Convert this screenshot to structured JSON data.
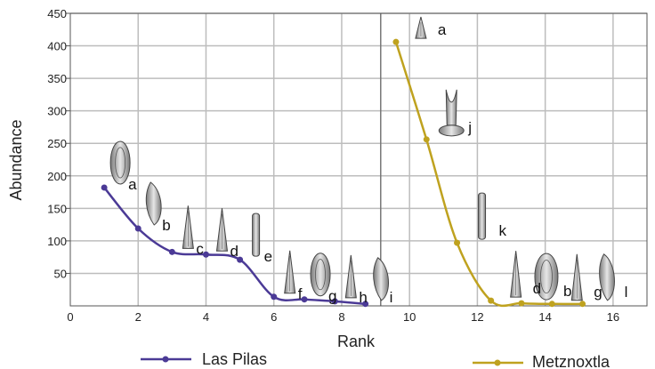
{
  "chart_data": {
    "type": "line",
    "xlabel": "Rank",
    "ylabel": "Abundance",
    "xlim": [
      0,
      17
    ],
    "ylim": [
      0,
      450
    ],
    "x_ticks": [
      "0",
      "2",
      "4",
      "6",
      "8",
      "10",
      "12",
      "14",
      "16"
    ],
    "y_ticks": [
      "50",
      "100",
      "150",
      "200",
      "250",
      "300",
      "350",
      "400",
      "450"
    ],
    "grid": true,
    "legend_position": "bottom",
    "series": [
      {
        "name": "Las Pilas",
        "color": "#4b3a96",
        "points": [
          {
            "x": 1,
            "y": 182,
            "label": "a"
          },
          {
            "x": 2,
            "y": 119,
            "label": "b"
          },
          {
            "x": 3,
            "y": 83,
            "label": "c"
          },
          {
            "x": 4,
            "y": 79,
            "label": "d"
          },
          {
            "x": 5,
            "y": 71,
            "label": "e"
          },
          {
            "x": 6,
            "y": 14,
            "label": "f"
          },
          {
            "x": 6.9,
            "y": 10,
            "label": "g"
          },
          {
            "x": 7.8,
            "y": 7,
            "label": "h"
          },
          {
            "x": 8.7,
            "y": 3,
            "label": "i"
          }
        ]
      },
      {
        "name": "Metznoxtla",
        "color": "#bfa21f",
        "points": [
          {
            "x": 9.6,
            "y": 406,
            "label": "a"
          },
          {
            "x": 10.5,
            "y": 256,
            "label": "j"
          },
          {
            "x": 11.4,
            "y": 97,
            "label": "k"
          },
          {
            "x": 12.4,
            "y": 8,
            "label": "d"
          },
          {
            "x": 13.3,
            "y": 4,
            "label": "b"
          },
          {
            "x": 14.2,
            "y": 3,
            "label": "g"
          },
          {
            "x": 15.1,
            "y": 3,
            "label": "l"
          }
        ]
      }
    ]
  },
  "legend": {
    "items": [
      {
        "label": "Las Pilas",
        "color": "#4b3a96"
      },
      {
        "label": "Metznoxtla",
        "color": "#bfa21f"
      }
    ]
  },
  "colors": {
    "grid": "#bdbdbd",
    "axis": "#555555",
    "divider": "#777777"
  }
}
